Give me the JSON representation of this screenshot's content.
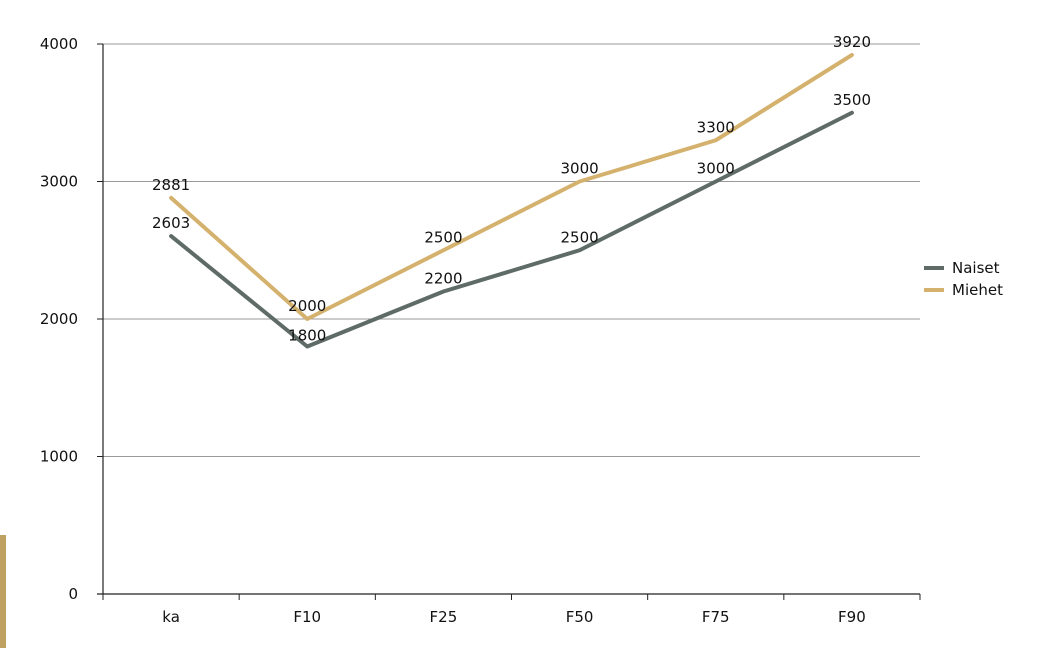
{
  "chart_data": {
    "type": "line",
    "title": "",
    "xlabel": "",
    "ylabel": "",
    "categories": [
      "ka",
      "F10",
      "F25",
      "F50",
      "F75",
      "F90"
    ],
    "ylim": [
      0,
      4000
    ],
    "yticks": [
      0,
      1000,
      2000,
      3000,
      4000
    ],
    "grid": true,
    "legend_position": "right",
    "series": [
      {
        "name": "Naiset",
        "color": "#5f6b66",
        "values": [
          2603,
          1800,
          2200,
          2500,
          3000,
          3500
        ]
      },
      {
        "name": "Miehet",
        "color": "#d4b26e",
        "values": [
          2881,
          2000,
          2500,
          3000,
          3300,
          3920
        ]
      }
    ]
  },
  "decor": {
    "side_bar_color": "#bfa161"
  }
}
